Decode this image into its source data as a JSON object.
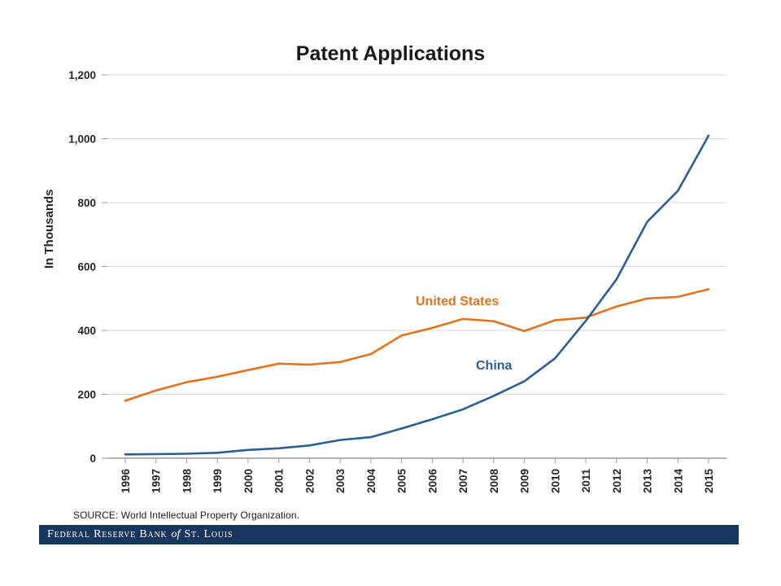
{
  "slide": {
    "source_note": "SOURCE: World Intellectual Property Organization.",
    "footer": {
      "part1": "Federal Reserve Bank",
      "part2": "of",
      "part3": "St. Louis"
    }
  },
  "chart_data": {
    "type": "line",
    "title": "Patent Applications",
    "xlabel": "",
    "ylabel": "In Thousands",
    "ylim": [
      0,
      1200
    ],
    "ytick_step": 200,
    "grid": "horizontal-light-gray",
    "legend": "inline-text-labels",
    "categories": [
      "1996",
      "1997",
      "1998",
      "1999",
      "2000",
      "2001",
      "2002",
      "2003",
      "2004",
      "2005",
      "2006",
      "2007",
      "2008",
      "2009",
      "2010",
      "2011",
      "2012",
      "2013",
      "2014",
      "2015"
    ],
    "series": [
      {
        "name": "United States",
        "color": "#e0731d",
        "values": [
          180,
          212,
          238,
          255,
          276,
          296,
          293,
          301,
          326,
          384,
          408,
          436,
          429,
          398,
          432,
          440,
          475,
          500,
          505,
          529
        ]
      },
      {
        "name": "China",
        "color": "#2d5e8f",
        "values": [
          12,
          13,
          14,
          17,
          26,
          31,
          40,
          57,
          66,
          93,
          122,
          153,
          195,
          241,
          313,
          430,
          560,
          740,
          837,
          1010
        ]
      }
    ]
  }
}
